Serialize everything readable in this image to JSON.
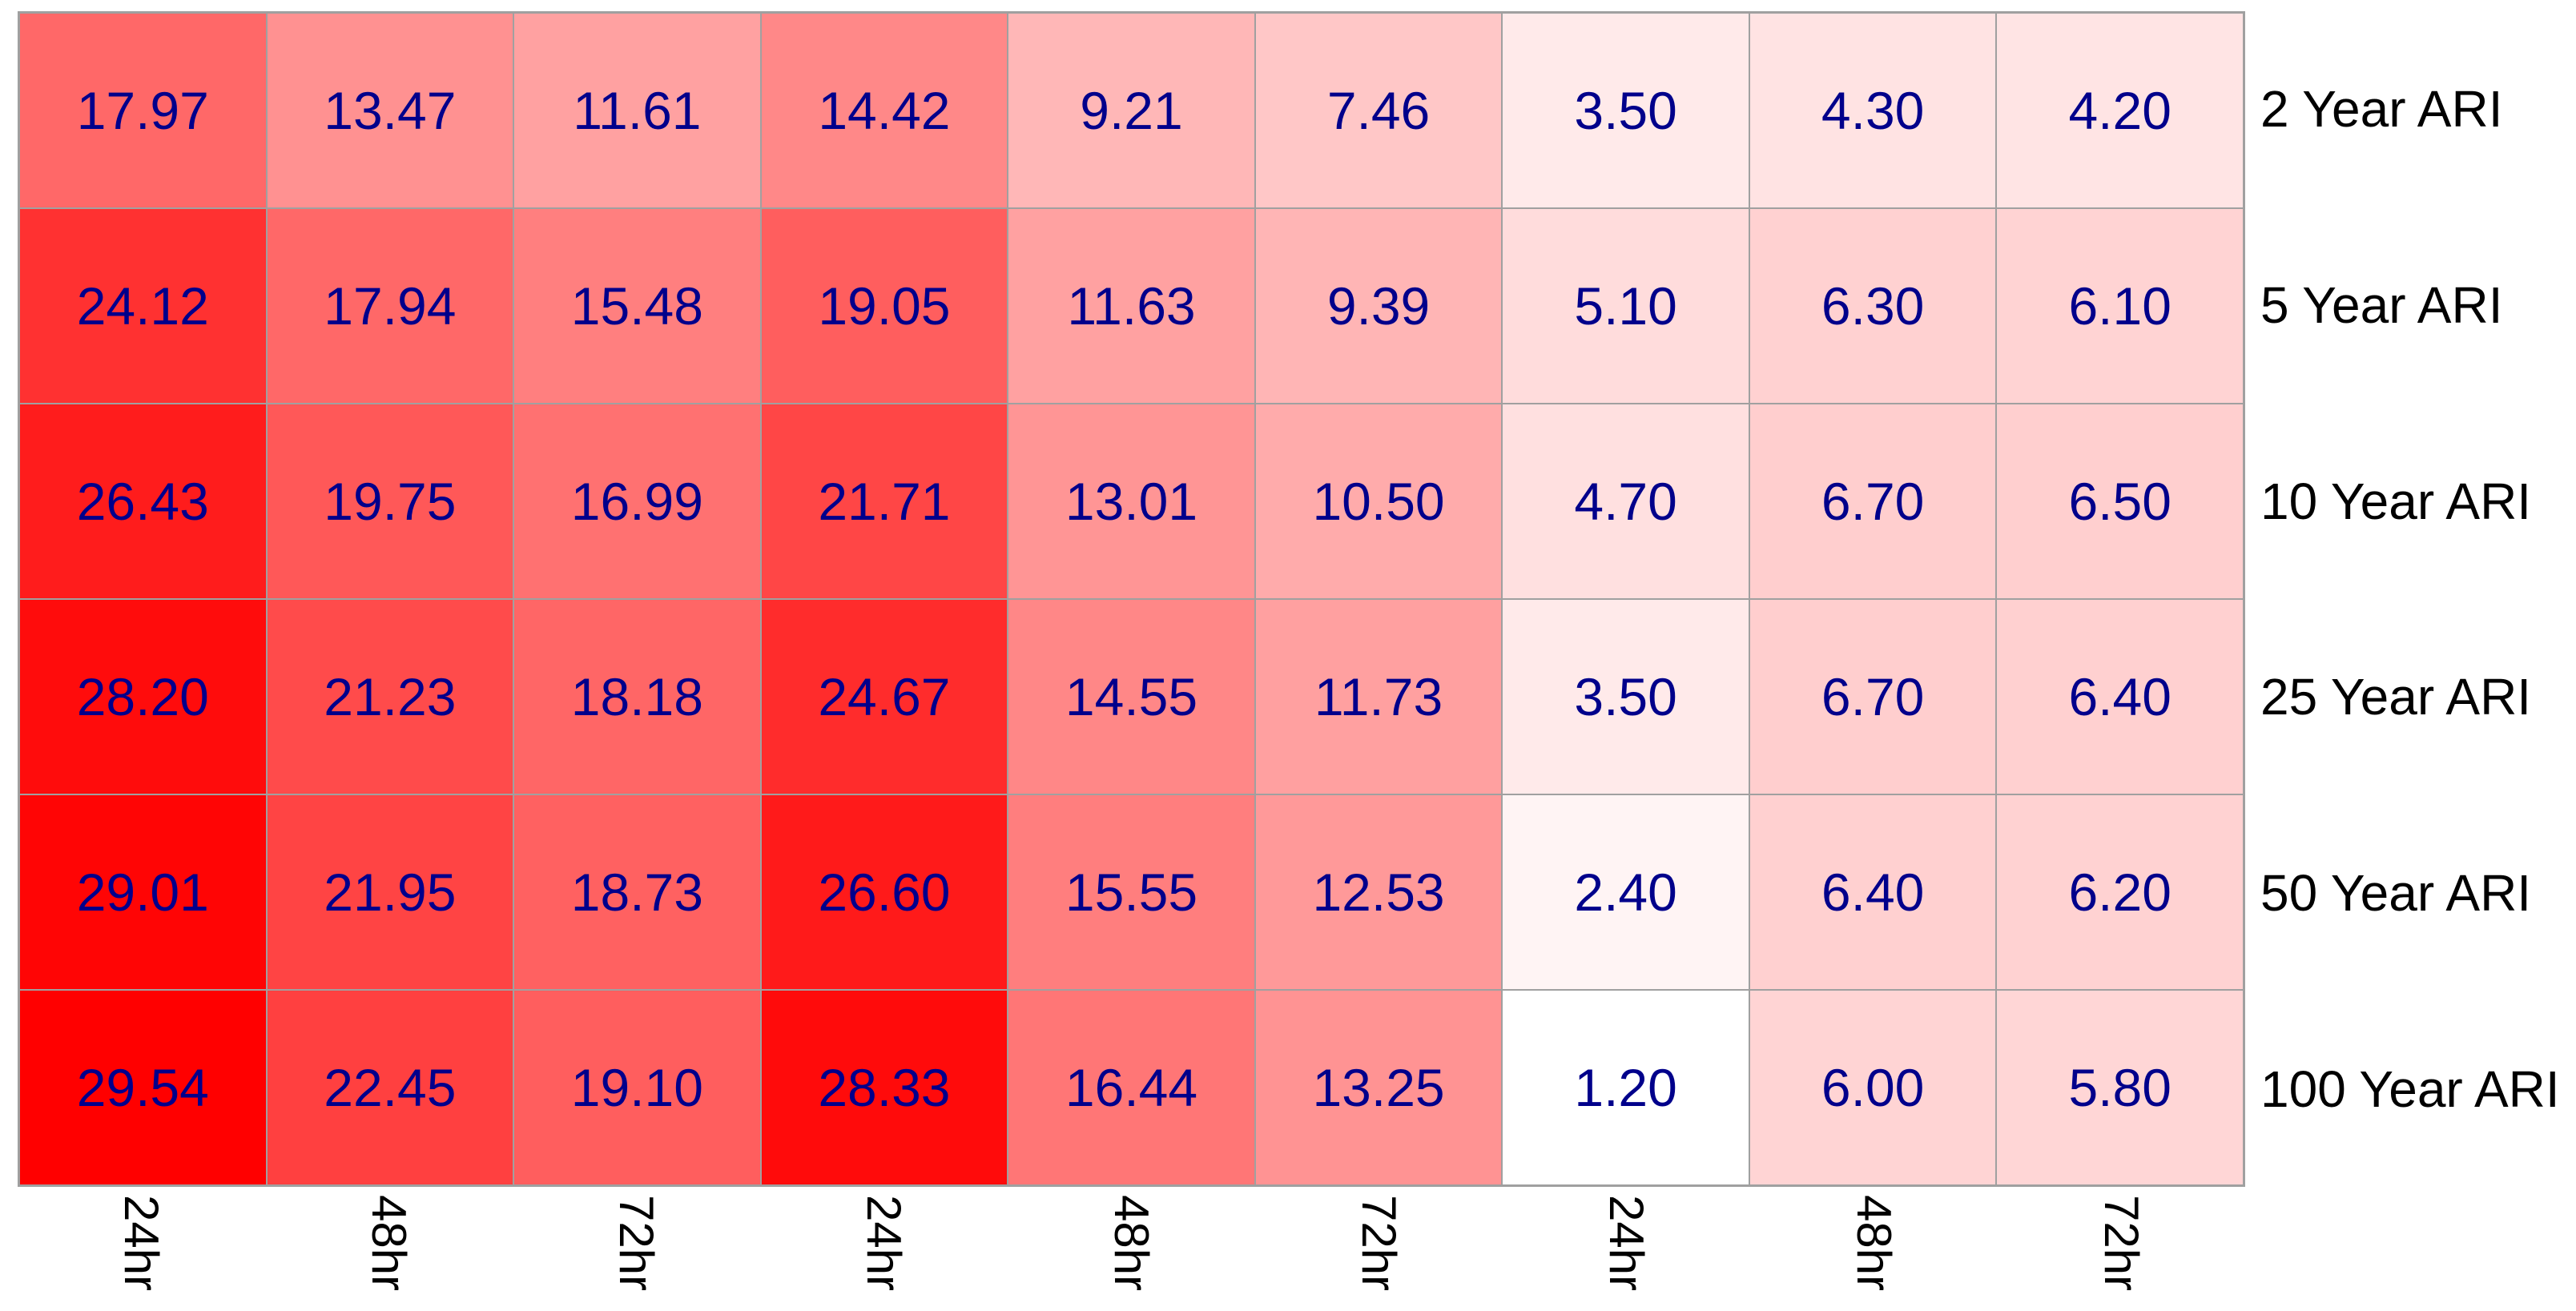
{
  "chart_data": {
    "type": "heatmap",
    "title": "",
    "xlabel": "",
    "ylabel": "",
    "row_labels": [
      "2 Year ARI",
      "5 Year ARI",
      "10 Year ARI",
      "25 Year ARI",
      "50 Year ARI",
      "100 Year ARI"
    ],
    "col_labels": [
      "24hr",
      "48hr",
      "72hr",
      "24hr",
      "48hr",
      "72hr",
      "24hr",
      "48hr",
      "72hr"
    ],
    "values": [
      [
        17.97,
        13.47,
        11.61,
        14.42,
        9.21,
        7.46,
        3.5,
        4.3,
        4.2
      ],
      [
        24.12,
        17.94,
        15.48,
        19.05,
        11.63,
        9.39,
        5.1,
        6.3,
        6.1
      ],
      [
        26.43,
        19.75,
        16.99,
        21.71,
        13.01,
        10.5,
        4.7,
        6.7,
        6.5
      ],
      [
        28.2,
        21.23,
        18.18,
        24.67,
        14.55,
        11.73,
        3.5,
        6.7,
        6.4
      ],
      [
        29.01,
        21.95,
        18.73,
        26.6,
        15.55,
        12.53,
        2.4,
        6.4,
        6.2
      ],
      [
        29.54,
        22.45,
        19.1,
        28.33,
        16.44,
        13.25,
        1.2,
        6.0,
        5.8
      ]
    ],
    "value_decimals": 2,
    "colormap": {
      "min_color": "#FFFFFF",
      "max_color": "#FF0000",
      "vmin": 1.2,
      "vmax": 29.54
    },
    "legend_position": "none",
    "grid_on": true,
    "colors": {
      "cell_text": "#00008B",
      "axis_label_text": "#000000",
      "gridline": "#A0A0A0",
      "background": "#FFFFFF"
    }
  }
}
